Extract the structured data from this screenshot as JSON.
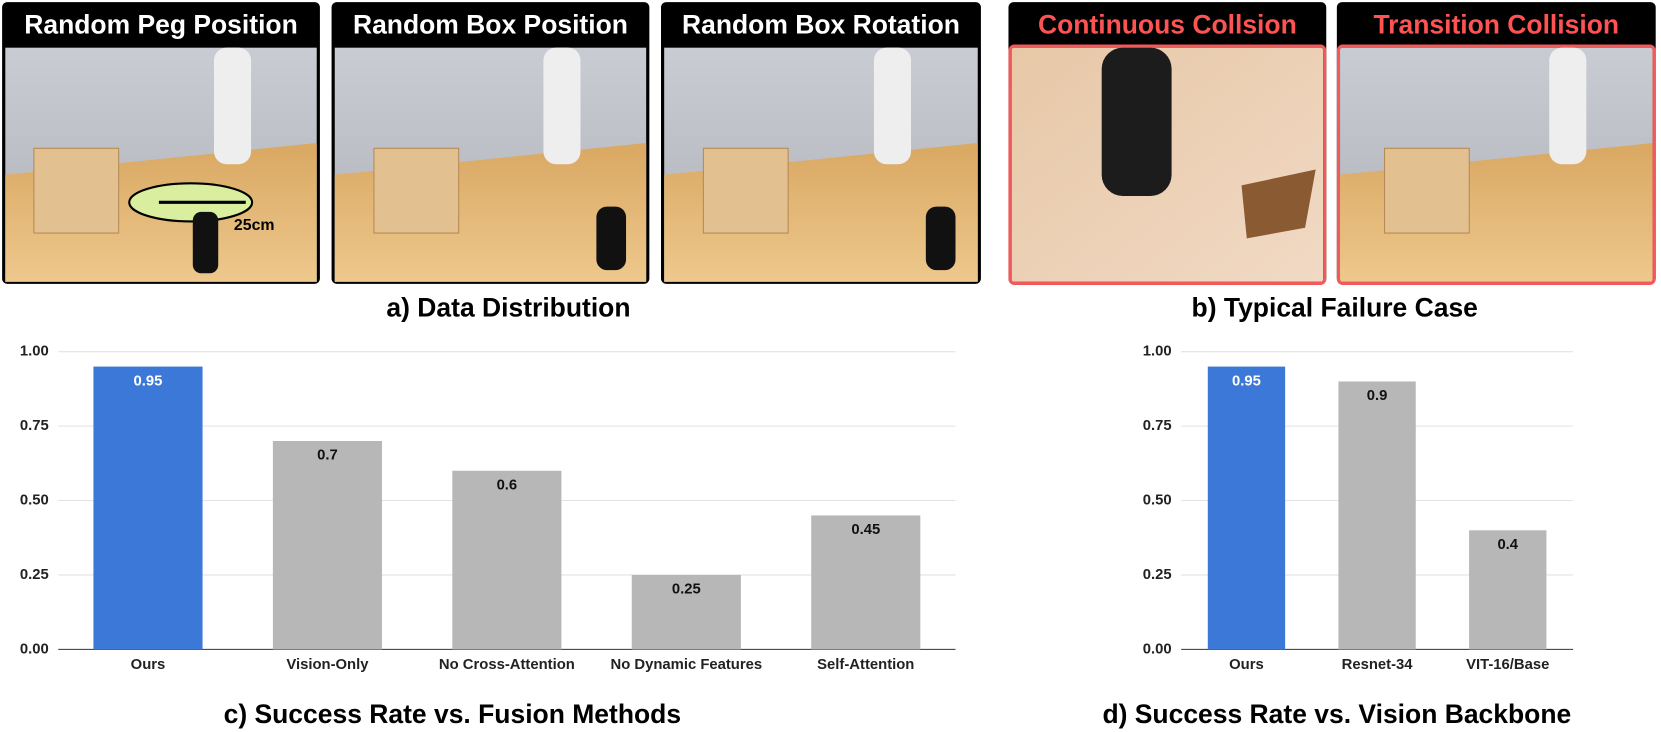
{
  "panels": [
    {
      "title": "Random Peg Position",
      "annotation": "25cm"
    },
    {
      "title": "Random Box Position"
    },
    {
      "title": "Random Box Rotation"
    },
    {
      "title": "Continuous Collsion"
    },
    {
      "title": "Transition Collision"
    }
  ],
  "captions": [
    "a) Data Distribution",
    "b) Typical Failure Case"
  ],
  "chart_data": [
    {
      "type": "bar",
      "title": "c) Success Rate vs. Fusion Methods",
      "categories": [
        "Ours",
        "Vision-Only",
        "No Cross-Attention",
        "No Dynamic Features",
        "Self-Attention"
      ],
      "values": [
        0.95,
        0.7,
        0.6,
        0.25,
        0.45
      ],
      "colors": [
        "#3c78d8",
        "#b7b7b7",
        "#b7b7b7",
        "#b7b7b7",
        "#b7b7b7"
      ],
      "ylim": [
        0,
        1
      ],
      "yticks": [
        {
          "value": 0,
          "label": "0.00"
        },
        0.25,
        {
          "value": 0.5,
          "label": "0.50"
        },
        0.75,
        {
          "value": 1,
          "label": "1.00"
        }
      ],
      "grid": true
    },
    {
      "type": "bar",
      "title": "d) Success Rate vs. Vision Backbone",
      "categories": [
        "Ours",
        "Resnet-34",
        "VIT-16/Base"
      ],
      "values": [
        0.95,
        0.9,
        0.4
      ],
      "colors": [
        "#3c78d8",
        "#b7b7b7",
        "#b7b7b7"
      ],
      "ylim": [
        0,
        1
      ],
      "yticks": [
        {
          "value": 0,
          "label": "0.00"
        },
        0.25,
        {
          "value": 0.5,
          "label": "0.50"
        },
        0.75,
        {
          "value": 1,
          "label": "1.00"
        }
      ],
      "grid": true
    }
  ]
}
